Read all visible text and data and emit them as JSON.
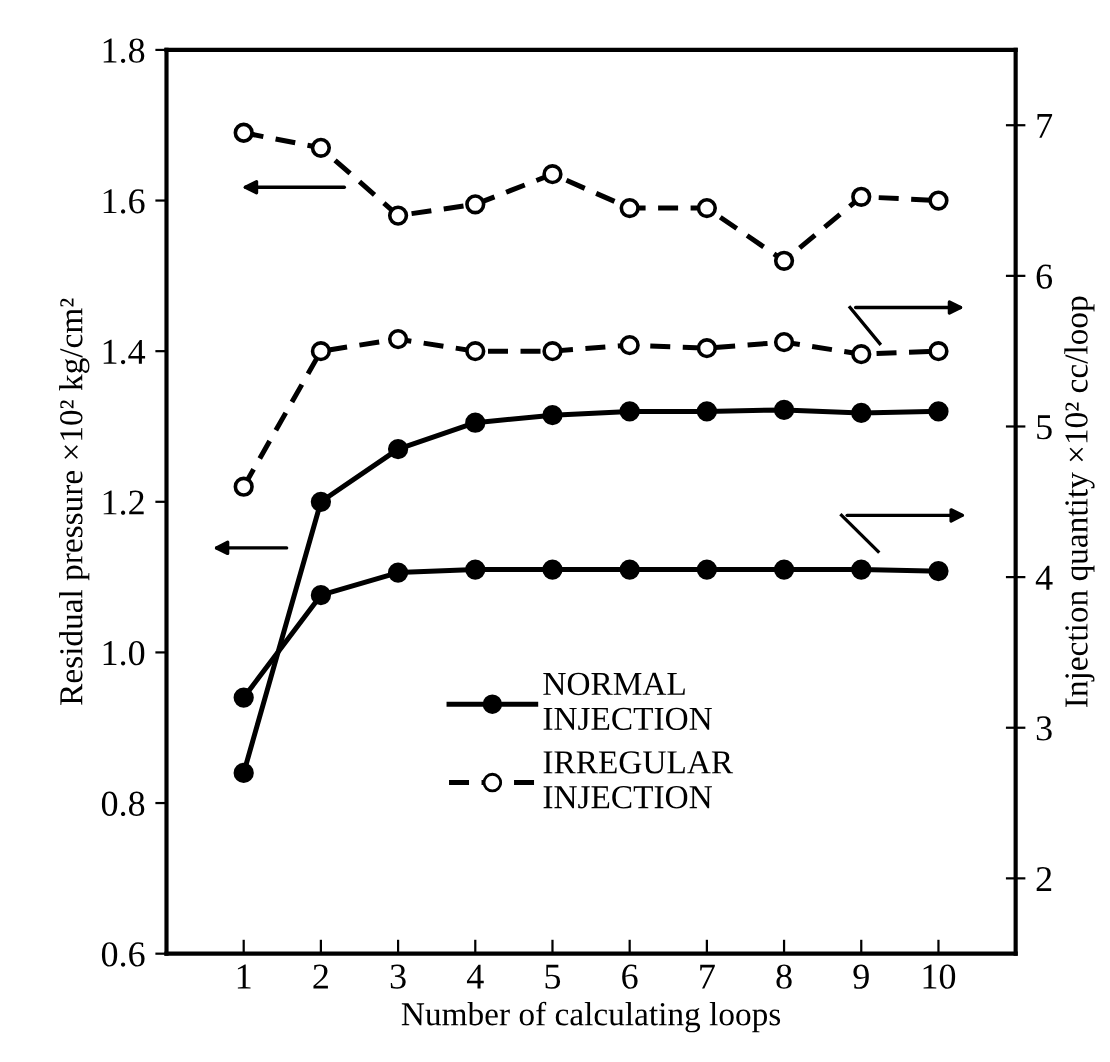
{
  "chart_data": {
    "type": "line",
    "xlabel": "Number of calculating loops",
    "ylabel": "Residual pressure ×10² kg/cm²",
    "y2label": "Injection quantity ×10² cc/loop",
    "x": [
      1,
      2,
      3,
      4,
      5,
      6,
      7,
      8,
      9,
      10
    ],
    "xlim": [
      0,
      11
    ],
    "xticks": [
      1,
      2,
      3,
      4,
      5,
      6,
      7,
      8,
      9,
      10
    ],
    "ylim": [
      0.6,
      1.8
    ],
    "yticks": [
      0.6,
      0.8,
      {
        "value": 1.0,
        "label": "1.0"
      },
      1.2,
      1.4,
      1.6,
      1.8
    ],
    "y2lim": [
      1.5,
      7.5
    ],
    "y2ticks": [
      2,
      3,
      4,
      5,
      6,
      7
    ],
    "marker": "circle",
    "grid": false,
    "legend": "bottom",
    "series": [
      {
        "name": "NORMAL\nINJECTION",
        "color": "#000000",
        "line_style": "solid",
        "values": [
          0.84,
          1.2,
          1.27,
          1.305,
          1.315,
          1.32,
          1.32,
          1.322,
          1.318,
          1.32
        ]
      },
      {
        "color": "#000000",
        "line_style": "solid",
        "axis": "y2",
        "values": [
          3.2,
          3.88,
          4.03,
          4.05,
          4.05,
          4.05,
          4.05,
          4.05,
          4.05,
          4.04
        ]
      },
      {
        "name": "IRREGULAR\nINJECTION",
        "color": "#000000",
        "line_style": "dashed",
        "values": [
          1.69,
          1.67,
          1.58,
          1.595,
          1.635,
          1.59,
          1.59,
          1.52,
          1.605,
          1.6
        ]
      },
      {
        "color": "#000000",
        "line_style": "dashed",
        "axis": "y2",
        "values": [
          4.6,
          5.5,
          5.58,
          5.5,
          5.5,
          5.54,
          5.52,
          5.56,
          5.48,
          5.5
        ]
      }
    ]
  }
}
